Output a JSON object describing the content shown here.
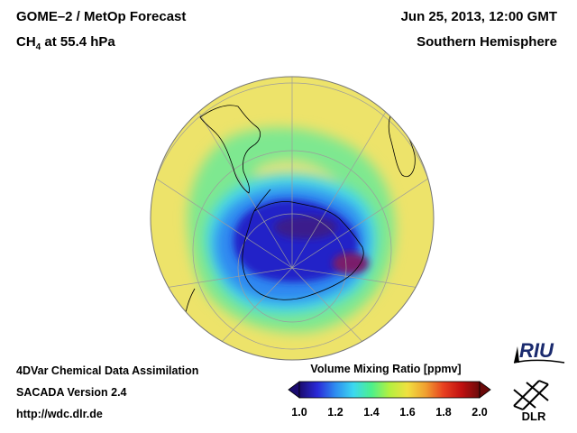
{
  "header": {
    "title_main": "GOME–2 / MetOp Forecast",
    "species": "CH",
    "species_sub": "4",
    "level": " at 55.4 hPa",
    "datetime": "Jun 25, 2013, 12:00 GMT",
    "region": "Southern Hemisphere"
  },
  "footer": {
    "line1": "4DVar Chemical Data Assimilation",
    "line2": "SACADA Version 2.4",
    "line3": "http://wdc.dlr.de"
  },
  "colorbar": {
    "label": "Volume Mixing Ratio [ppmv]",
    "ticks": [
      "1.0",
      "1.2",
      "1.4",
      "1.6",
      "1.8",
      "2.0"
    ],
    "min": 1.0,
    "max": 2.0,
    "colors": [
      "#1a0a6e",
      "#2a2ad8",
      "#2e8cf0",
      "#3cd8f0",
      "#4cf08c",
      "#b4f040",
      "#f0e040",
      "#f0a030",
      "#e84020",
      "#c01010",
      "#6a0a0a"
    ]
  },
  "logos": {
    "riu": "RIU",
    "dlr": "DLR"
  },
  "map": {
    "projection": "orthographic",
    "hemisphere": "south",
    "background_value_color": "#ede36a"
  }
}
